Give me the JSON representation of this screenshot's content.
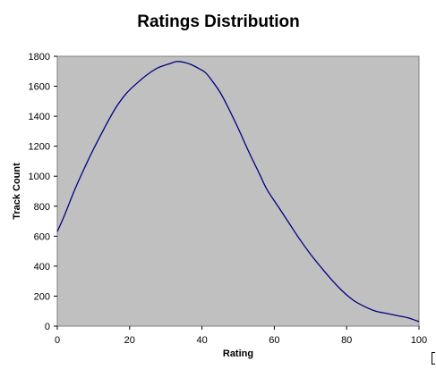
{
  "chart_data": {
    "type": "line",
    "title": "Ratings Distribution",
    "xlabel": "Rating",
    "ylabel": "Track Count",
    "xlim": [
      0,
      100
    ],
    "ylim": [
      0,
      1800
    ],
    "xticks": [
      "0",
      "20",
      "40",
      "60",
      "80",
      "100"
    ],
    "yticks": [
      "0",
      "200",
      "400",
      "600",
      "800",
      "1000",
      "1200",
      "1400",
      "1600",
      "1800"
    ],
    "grid": false,
    "legend": "none",
    "plot_background": "#c0c0c0",
    "series": [
      {
        "color": "#000080",
        "x": [
          0,
          2,
          5,
          8,
          10,
          13,
          16,
          19,
          22,
          25,
          28,
          31,
          33,
          35,
          37,
          39,
          41,
          43,
          45,
          47,
          50,
          53,
          56,
          58,
          61,
          64,
          67,
          70,
          73,
          76,
          79,
          82,
          85,
          88,
          91,
          94,
          97,
          100
        ],
        "y": [
          630,
          740,
          920,
          1080,
          1180,
          1320,
          1450,
          1550,
          1620,
          1680,
          1725,
          1750,
          1765,
          1760,
          1745,
          1720,
          1690,
          1630,
          1560,
          1470,
          1320,
          1160,
          1010,
          910,
          800,
          690,
          580,
          480,
          390,
          305,
          230,
          170,
          130,
          100,
          85,
          70,
          55,
          30
        ]
      }
    ]
  }
}
